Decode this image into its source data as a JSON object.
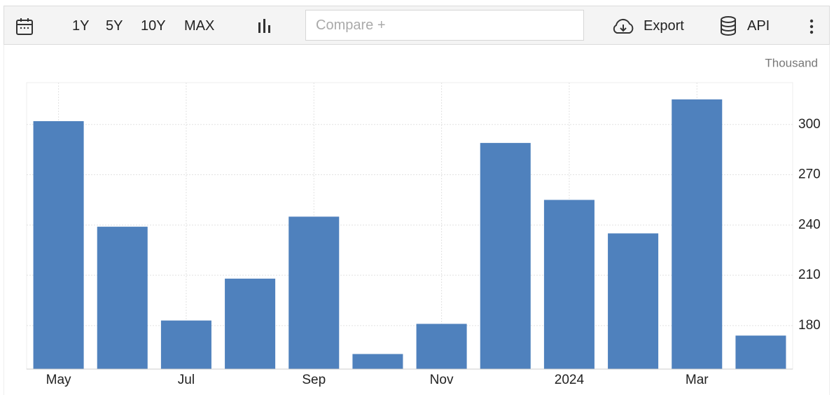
{
  "toolbar": {
    "ranges": [
      "1Y",
      "5Y",
      "10Y",
      "MAX"
    ],
    "compare": "Compare +",
    "export": "Export",
    "api": "API"
  },
  "chart_data": {
    "type": "bar",
    "unit": "Thousand",
    "categories": [
      "May",
      null,
      "Jul",
      null,
      "Sep",
      null,
      "Nov",
      null,
      "2024",
      null,
      "Mar",
      null
    ],
    "values": [
      302,
      239,
      183,
      208,
      245,
      163,
      181,
      289,
      255,
      235,
      315,
      174
    ],
    "color": "#4f81bd",
    "ylim": [
      154,
      325
    ],
    "yticks": [
      180,
      210,
      240,
      270,
      300
    ],
    "grid": true
  }
}
